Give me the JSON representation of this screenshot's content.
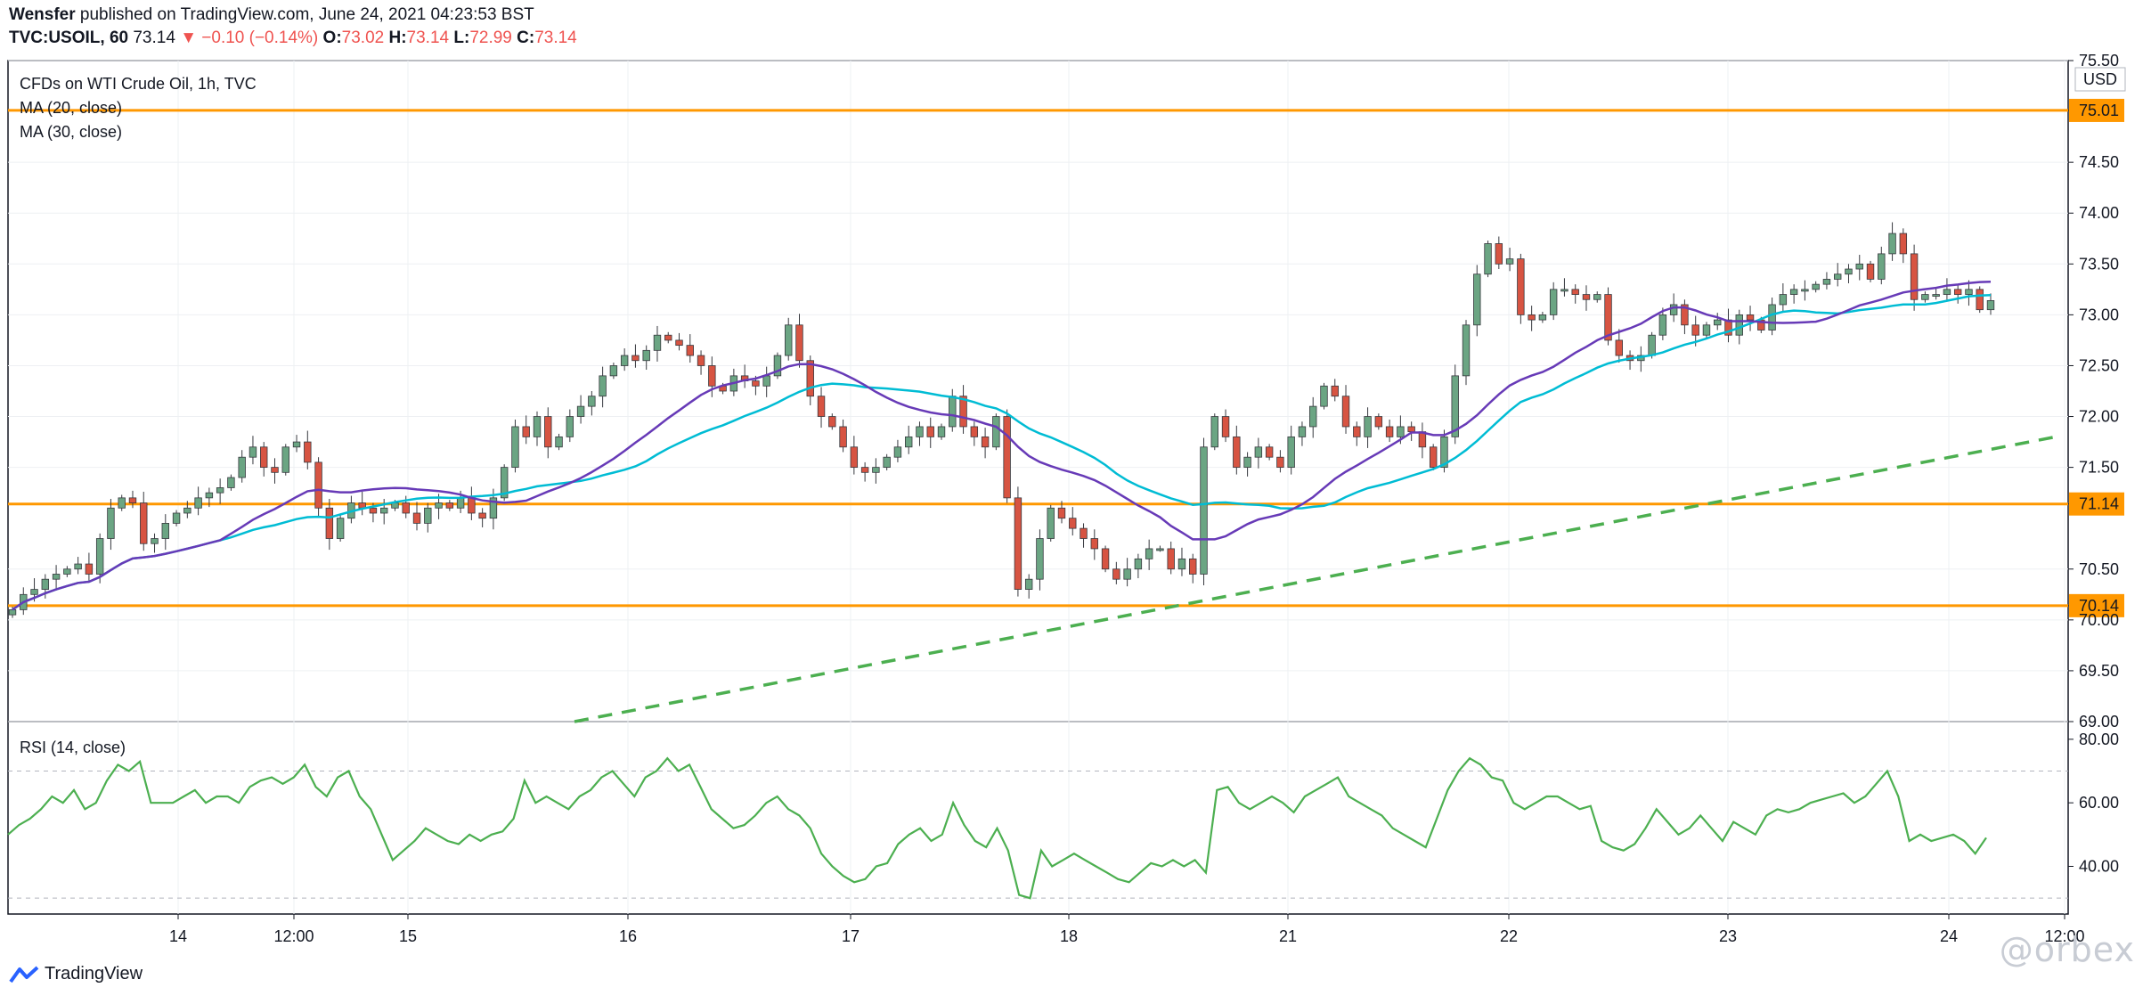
{
  "header": {
    "author": "Wensfer",
    "published_text": "published on TradingView.com, June 24, 2021 04:23:53 BST",
    "symbol": "TVC:USOIL, 60",
    "last": "73.14",
    "change": "−0.10 (−0.14%)",
    "o_label": "O:",
    "o": "73.02",
    "h_label": "H:",
    "h": "73.14",
    "l_label": "L:",
    "l": "72.99",
    "c_label": "C:",
    "c": "73.14"
  },
  "legend": {
    "title": "CFDs on WTI Crude Oil, 1h, TVC",
    "ma20": "MA (20, close)",
    "ma30": "MA (30, close)",
    "rsi": "RSI (14, close)"
  },
  "currency": "USD",
  "footer": {
    "brand": "TradingView",
    "watermark": "@orbex"
  },
  "colors": {
    "up": "#6ba583",
    "down": "#d75442",
    "ma20": "#673ab7",
    "ma30": "#00bcd4",
    "level": "#ff9800",
    "trend": "#4caf50",
    "rsi": "#4caf50"
  },
  "chart_data": [
    {
      "type": "candlestick",
      "title": "CFDs on WTI Crude Oil, 1h, TVC",
      "x_ticks": [
        "14",
        "12:00",
        "15",
        "16",
        "17",
        "18",
        "21",
        "22",
        "23",
        "24",
        "12:00"
      ],
      "y_ticks": [
        "75.50",
        "75.01",
        "74.50",
        "74.00",
        "73.50",
        "73.00",
        "72.50",
        "72.00",
        "71.50",
        "71.14",
        "70.50",
        "70.14",
        "70.00",
        "69.50",
        "69.00"
      ],
      "ylim": [
        69.0,
        75.5
      ],
      "horizontal_levels": [
        75.01,
        71.14,
        70.14
      ],
      "trendline": {
        "style": "dashed",
        "points": [
          [
            "16 00:00",
            69.0
          ],
          [
            "24 12:00",
            71.8
          ]
        ]
      },
      "close_series": [
        70.1,
        70.25,
        70.3,
        70.4,
        70.45,
        70.5,
        70.55,
        70.45,
        70.8,
        71.1,
        71.2,
        71.15,
        70.75,
        70.8,
        70.95,
        71.05,
        71.1,
        71.2,
        71.25,
        71.3,
        71.4,
        71.6,
        71.7,
        71.5,
        71.45,
        71.7,
        71.75,
        71.55,
        71.1,
        70.8,
        71.0,
        71.15,
        71.1,
        71.05,
        71.1,
        71.15,
        71.05,
        70.95,
        71.1,
        71.15,
        71.1,
        71.2,
        71.05,
        71.0,
        71.2,
        71.5,
        71.9,
        71.8,
        72.0,
        71.7,
        71.8,
        72.0,
        72.1,
        72.2,
        72.4,
        72.5,
        72.6,
        72.55,
        72.65,
        72.8,
        72.75,
        72.7,
        72.6,
        72.5,
        72.3,
        72.25,
        72.4,
        72.35,
        72.3,
        72.4,
        72.6,
        72.9,
        72.55,
        72.2,
        72.0,
        71.9,
        71.7,
        71.5,
        71.45,
        71.5,
        71.6,
        71.7,
        71.8,
        71.9,
        71.8,
        71.9,
        72.2,
        71.9,
        71.8,
        71.7,
        72.0,
        71.2,
        70.3,
        70.4,
        70.8,
        71.1,
        71.0,
        70.9,
        70.8,
        70.7,
        70.5,
        70.4,
        70.5,
        70.6,
        70.7,
        70.7,
        70.5,
        70.6,
        70.45,
        71.7,
        72.0,
        71.8,
        71.5,
        71.6,
        71.7,
        71.6,
        71.5,
        71.8,
        71.9,
        72.1,
        72.3,
        72.2,
        71.9,
        71.8,
        72.0,
        71.9,
        71.8,
        71.9,
        71.85,
        71.7,
        71.5,
        71.8,
        72.4,
        72.9,
        73.4,
        73.7,
        73.5,
        73.55,
        73.0,
        72.95,
        73.0,
        73.25,
        73.25,
        73.2,
        73.15,
        73.2,
        72.75,
        72.6,
        72.55,
        72.6,
        72.8,
        73.0,
        73.1,
        72.9,
        72.8,
        72.9,
        72.95,
        72.8,
        73.0,
        72.95,
        72.85,
        73.1,
        73.2,
        73.25,
        73.25,
        73.3,
        73.35,
        73.4,
        73.45,
        73.5,
        73.35,
        73.6,
        73.8,
        73.6,
        73.15,
        73.2,
        73.2,
        73.25,
        73.2,
        73.25,
        73.05,
        73.14
      ],
      "ma20_close": "computed",
      "ma30_close": "computed"
    },
    {
      "type": "line",
      "title": "RSI (14, close)",
      "y_ticks": [
        "80.00",
        "60.00",
        "40.00"
      ],
      "ylim": [
        25,
        85
      ],
      "dashed_levels": [
        70,
        30
      ],
      "values": [
        50,
        53,
        55,
        58,
        62,
        60,
        64,
        58,
        60,
        67,
        72,
        70,
        73,
        60,
        60,
        60,
        62,
        64,
        60,
        62,
        62,
        60,
        65,
        67,
        68,
        66,
        68,
        72,
        65,
        62,
        68,
        70,
        62,
        58,
        50,
        42,
        45,
        48,
        52,
        50,
        48,
        47,
        50,
        48,
        50,
        51,
        55,
        67,
        60,
        62,
        60,
        58,
        62,
        64,
        68,
        70,
        66,
        62,
        68,
        70,
        74,
        70,
        72,
        65,
        58,
        55,
        52,
        53,
        56,
        60,
        62,
        58,
        56,
        52,
        44,
        40,
        37,
        35,
        36,
        40,
        41,
        47,
        50,
        52,
        48,
        50,
        60,
        53,
        48,
        46,
        52,
        45,
        31,
        30,
        45,
        40,
        42,
        44,
        42,
        40,
        38,
        36,
        35,
        38,
        41,
        40,
        42,
        40,
        42,
        38,
        64,
        65,
        60,
        58,
        60,
        62,
        60,
        57,
        62,
        64,
        66,
        68,
        62,
        60,
        58,
        56,
        52,
        50,
        48,
        46,
        55,
        64,
        70,
        74,
        72,
        68,
        67,
        60,
        58,
        60,
        62,
        62,
        60,
        58,
        59,
        48,
        46,
        45,
        47,
        52,
        58,
        54,
        50,
        52,
        56,
        52,
        48,
        54,
        52,
        50,
        56,
        58,
        57,
        58,
        60,
        61,
        62,
        63,
        60,
        62,
        66,
        70,
        62,
        48,
        50,
        48,
        49,
        50,
        48,
        44,
        49
      ]
    }
  ]
}
